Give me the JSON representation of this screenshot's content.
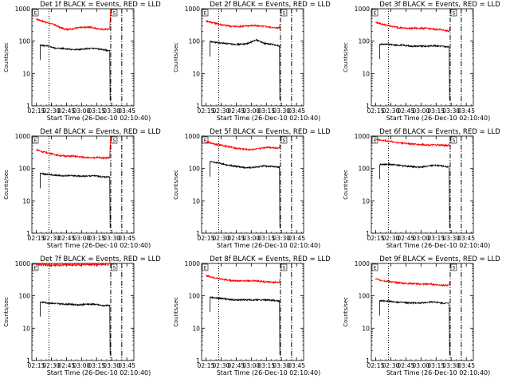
{
  "chart_data": [
    {
      "type": "line",
      "title": "Det 1f BLACK = Events, RED = LLD",
      "xlabel": "Start Time (26-Dec-10 02:10:40)",
      "ylabel": "Counts/sec",
      "y_scale": "log",
      "ylim": [
        1,
        1000
      ],
      "xlim": [
        "02:10:40",
        "03:52:00"
      ],
      "x_ticks": [
        "02:15",
        "02:30",
        "02:45",
        "03:00",
        "03:15",
        "03:30",
        "03:45"
      ],
      "y_ticks": [
        "1",
        "10",
        "100",
        "1000"
      ],
      "markers": [
        "E",
        "S"
      ],
      "events": {
        "start": "02:19",
        "end": "03:28",
        "levels": [
          75,
          70,
          60,
          60,
          55,
          55,
          58,
          60,
          55,
          50
        ]
      },
      "lld": {
        "start": "02:15",
        "end": "03:28",
        "levels": [
          480,
          420,
          360,
          320,
          260,
          230,
          240,
          260,
          270,
          270,
          240,
          230,
          240
        ]
      },
      "spike": "after"
    },
    {
      "type": "line",
      "title": "Det 2f BLACK = Events, RED = LLD",
      "xlabel": "Start Time (26-Dec-10 02:10:40)",
      "ylabel": "Counts/sec",
      "y_scale": "log",
      "ylim": [
        1,
        1000
      ],
      "xlim": [
        "02:10:40",
        "03:52:00"
      ],
      "x_ticks": [
        "02:15",
        "02:30",
        "02:45",
        "03:00",
        "03:15",
        "03:30",
        "03:45"
      ],
      "y_ticks": [
        "1",
        "10",
        "100",
        "1000"
      ],
      "markers": [
        "E",
        "S"
      ],
      "events": {
        "start": "02:19",
        "end": "03:28",
        "levels": [
          95,
          90,
          85,
          80,
          80,
          85,
          110,
          85,
          80,
          70
        ]
      },
      "lld": {
        "start": "02:15",
        "end": "03:28",
        "levels": [
          420,
          380,
          340,
          310,
          290,
          280,
          290,
          300,
          300,
          290,
          280,
          260,
          260
        ]
      },
      "spike": "none"
    },
    {
      "type": "line",
      "title": "Det 3f BLACK = Events, RED = LLD",
      "xlabel": "Start Time (26-Dec-10 02:10:40)",
      "ylabel": "Counts/sec",
      "y_scale": "log",
      "ylim": [
        1,
        1000
      ],
      "xlim": [
        "02:10:40",
        "03:52:00"
      ],
      "x_ticks": [
        "02:15",
        "02:30",
        "02:45",
        "03:00",
        "03:15",
        "03:30",
        "03:45"
      ],
      "y_ticks": [
        "1",
        "10",
        "100",
        "1000"
      ],
      "markers": [
        "E",
        "S"
      ],
      "events": {
        "start": "02:19",
        "end": "03:28",
        "levels": [
          80,
          80,
          75,
          75,
          70,
          70,
          70,
          72,
          70,
          65
        ]
      },
      "lld": {
        "start": "02:15",
        "end": "03:28",
        "levels": [
          380,
          340,
          300,
          280,
          260,
          250,
          250,
          250,
          250,
          240,
          230,
          220,
          200
        ]
      },
      "spike": "none"
    },
    {
      "type": "line",
      "title": "Det 4f BLACK = Events, RED = LLD",
      "xlabel": "Start Time (26-Dec-10 02:10:40)",
      "ylabel": "Counts/sec",
      "y_scale": "log",
      "ylim": [
        1,
        1000
      ],
      "xlim": [
        "02:10:40",
        "03:52:00"
      ],
      "x_ticks": [
        "02:15",
        "02:30",
        "02:45",
        "03:00",
        "03:15",
        "03:30",
        "03:45"
      ],
      "y_ticks": [
        "1",
        "10",
        "100",
        "1000"
      ],
      "markers": [
        "E",
        "S"
      ],
      "events": {
        "start": "02:19",
        "end": "03:28",
        "levels": [
          70,
          65,
          62,
          60,
          60,
          58,
          58,
          60,
          55,
          55
        ]
      },
      "lld": {
        "start": "02:15",
        "end": "03:28",
        "levels": [
          380,
          330,
          300,
          270,
          250,
          240,
          240,
          230,
          220,
          210,
          220,
          210,
          220
        ]
      },
      "spike": "after"
    },
    {
      "type": "line",
      "title": "Det 5f BLACK = Events, RED = LLD",
      "xlabel": "Start Time (26-Dec-10 02:10:40)",
      "ylabel": "Counts/sec",
      "y_scale": "log",
      "ylim": [
        1,
        1000
      ],
      "xlim": [
        "02:10:40",
        "03:52:00"
      ],
      "x_ticks": [
        "02:15",
        "02:30",
        "02:45",
        "03:00",
        "03:15",
        "03:30",
        "03:45"
      ],
      "y_ticks": [
        "1",
        "10",
        "100",
        "1000"
      ],
      "markers": [
        "E",
        "S"
      ],
      "events": {
        "start": "02:19",
        "end": "03:28",
        "levels": [
          160,
          150,
          130,
          120,
          110,
          105,
          110,
          120,
          115,
          110
        ]
      },
      "lld": {
        "start": "02:15",
        "end": "03:28",
        "levels": [
          650,
          600,
          540,
          500,
          460,
          420,
          400,
          380,
          390,
          420,
          460,
          440,
          430
        ]
      },
      "spike": "none"
    },
    {
      "type": "line",
      "title": "Det 6f BLACK = Events, RED = LLD",
      "xlabel": "Start Time (26-Dec-10 02:10:40)",
      "ylabel": "Counts/sec",
      "y_scale": "log",
      "ylim": [
        1,
        1000
      ],
      "xlim": [
        "02:10:40",
        "03:52:00"
      ],
      "x_ticks": [
        "02:15",
        "02:30",
        "02:45",
        "03:00",
        "03:15",
        "03:30",
        "03:45"
      ],
      "y_ticks": [
        "1",
        "10",
        "100",
        "1000"
      ],
      "markers": [
        "E",
        "S"
      ],
      "events": {
        "start": "02:19",
        "end": "03:28",
        "levels": [
          135,
          135,
          130,
          120,
          115,
          110,
          115,
          125,
          120,
          110
        ]
      },
      "lld": {
        "start": "02:15",
        "end": "03:28",
        "levels": [
          780,
          740,
          700,
          660,
          620,
          600,
          570,
          550,
          540,
          530,
          530,
          520,
          520
        ]
      },
      "spike": "none"
    },
    {
      "type": "line",
      "title": "Det 7f BLACK = Events, RED = LLD",
      "xlabel": "Start Time (26-Dec-10 02:10:40)",
      "ylabel": "Counts/sec",
      "y_scale": "log",
      "ylim": [
        1,
        1000
      ],
      "xlim": [
        "02:10:40",
        "03:52:00"
      ],
      "x_ticks": [
        "02:15",
        "02:30",
        "02:45",
        "03:00",
        "03:15",
        "03:30",
        "03:45"
      ],
      "y_ticks": [
        "1",
        "10",
        "100",
        "1000"
      ],
      "markers": [
        "E",
        "S"
      ],
      "events": {
        "start": "02:19",
        "end": "03:28",
        "levels": [
          65,
          60,
          58,
          55,
          55,
          52,
          55,
          55,
          50,
          50
        ]
      },
      "lld": {
        "start": "02:15",
        "end": "03:28",
        "levels": [
          930,
          900,
          880,
          880,
          900,
          920,
          900,
          920,
          940,
          950,
          930,
          920,
          950
        ]
      },
      "spike": "none"
    },
    {
      "type": "line",
      "title": "Det 8f BLACK = Events, RED = LLD",
      "xlabel": "Start Time (26-Dec-10 02:10:40)",
      "ylabel": "Counts/sec",
      "y_scale": "log",
      "ylim": [
        1,
        1000
      ],
      "xlim": [
        "02:10:40",
        "03:52:00"
      ],
      "x_ticks": [
        "02:15",
        "02:30",
        "02:45",
        "03:00",
        "03:15",
        "03:30",
        "03:45"
      ],
      "y_ticks": [
        "1",
        "10",
        "100",
        "1000"
      ],
      "markers": [
        "E",
        "S"
      ],
      "events": {
        "start": "02:19",
        "end": "03:28",
        "levels": [
          90,
          85,
          80,
          75,
          75,
          75,
          75,
          75,
          72,
          70
        ]
      },
      "lld": {
        "start": "02:15",
        "end": "03:28",
        "levels": [
          420,
          380,
          340,
          320,
          300,
          290,
          290,
          290,
          290,
          280,
          270,
          260,
          260
        ]
      },
      "spike": "none"
    },
    {
      "type": "line",
      "title": "Det 9f BLACK = Events, RED = LLD",
      "xlabel": "Start Time (26-Dec-10 02:10:40)",
      "ylabel": "Counts/sec",
      "y_scale": "log",
      "ylim": [
        1,
        1000
      ],
      "xlim": [
        "02:10:40",
        "03:52:00"
      ],
      "x_ticks": [
        "02:15",
        "02:30",
        "02:45",
        "03:00",
        "03:15",
        "03:30",
        "03:45"
      ],
      "y_ticks": [
        "1",
        "10",
        "100",
        "1000"
      ],
      "markers": [
        "E",
        "S"
      ],
      "events": {
        "start": "02:19",
        "end": "03:28",
        "levels": [
          70,
          68,
          65,
          62,
          60,
          60,
          62,
          65,
          60,
          58
        ]
      },
      "lld": {
        "start": "02:15",
        "end": "03:28",
        "levels": [
          330,
          300,
          280,
          260,
          250,
          240,
          240,
          230,
          230,
          230,
          220,
          210,
          210
        ]
      },
      "spike": "none"
    }
  ],
  "colors": {
    "events": "#000000",
    "lld": "#ff0000",
    "axes": "#000000",
    "background": "#ffffff"
  }
}
